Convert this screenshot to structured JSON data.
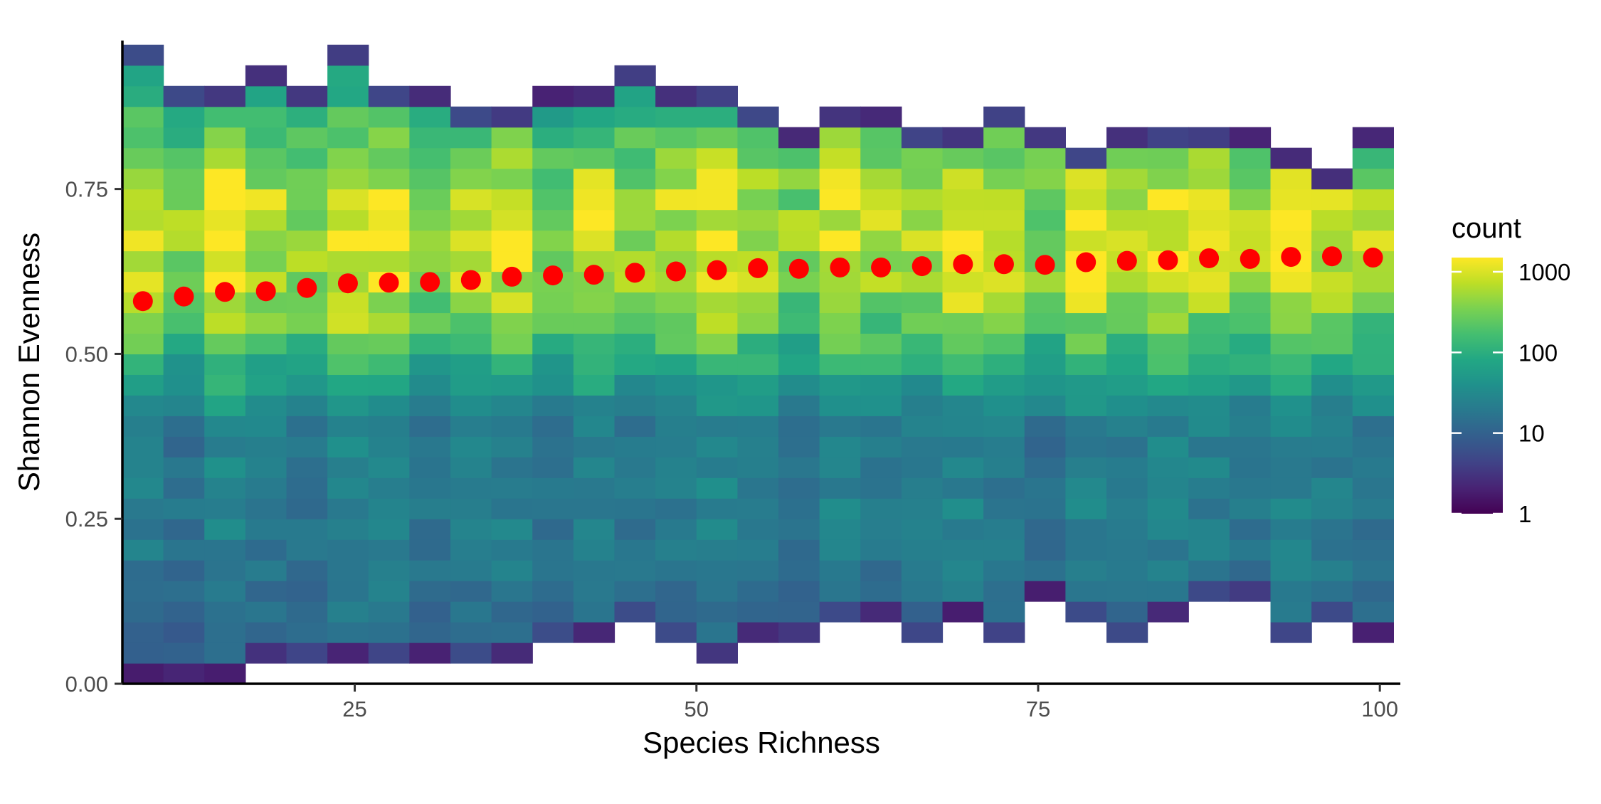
{
  "chart_data": {
    "type": "heatmap",
    "xlabel": "Species Richness",
    "ylabel": "Shannon Evenness",
    "xlim": [
      8,
      101.5
    ],
    "ylim": [
      0,
      0.975
    ],
    "x_ticks": [
      {
        "value": 25,
        "label": "25"
      },
      {
        "value": 50,
        "label": "50"
      },
      {
        "value": 75,
        "label": "75"
      },
      {
        "value": 100,
        "label": "100"
      }
    ],
    "y_ticks": [
      {
        "value": 0.0,
        "label": "0.00"
      },
      {
        "value": 0.25,
        "label": "0.25"
      },
      {
        "value": 0.5,
        "label": "0.50"
      },
      {
        "value": 0.75,
        "label": "0.75"
      }
    ],
    "heatmap": {
      "x_start": 8,
      "x_bin_width": 3,
      "n_x_bins": 31,
      "y_start": 0,
      "y_bin_height": 0.03125,
      "n_y_bins": 31,
      "count_scale": "log10",
      "count_range": [
        1,
        1500
      ],
      "palette": "viridis"
    },
    "legend": {
      "title": "count",
      "position": "right",
      "breaks": [
        {
          "value": 1000,
          "label": "1000"
        },
        {
          "value": 100,
          "label": "100"
        },
        {
          "value": 10,
          "label": "10"
        },
        {
          "value": 1,
          "label": "1"
        }
      ]
    },
    "mean_points": {
      "color": "#ff0000",
      "x": [
        9.5,
        12.5,
        15.5,
        18.5,
        21.5,
        24.5,
        27.5,
        30.5,
        33.5,
        36.5,
        39.5,
        42.5,
        45.5,
        48.5,
        51.5,
        54.5,
        57.5,
        60.5,
        63.5,
        66.5,
        69.5,
        72.5,
        75.5,
        78.5,
        81.5,
        84.5,
        87.5,
        90.5,
        93.5,
        96.5,
        99.5
      ],
      "y": [
        0.58,
        0.587,
        0.594,
        0.595,
        0.6,
        0.607,
        0.608,
        0.609,
        0.612,
        0.617,
        0.619,
        0.62,
        0.623,
        0.625,
        0.627,
        0.63,
        0.629,
        0.631,
        0.631,
        0.633,
        0.636,
        0.636,
        0.635,
        0.639,
        0.641,
        0.642,
        0.645,
        0.644,
        0.647,
        0.648,
        0.646
      ]
    }
  }
}
